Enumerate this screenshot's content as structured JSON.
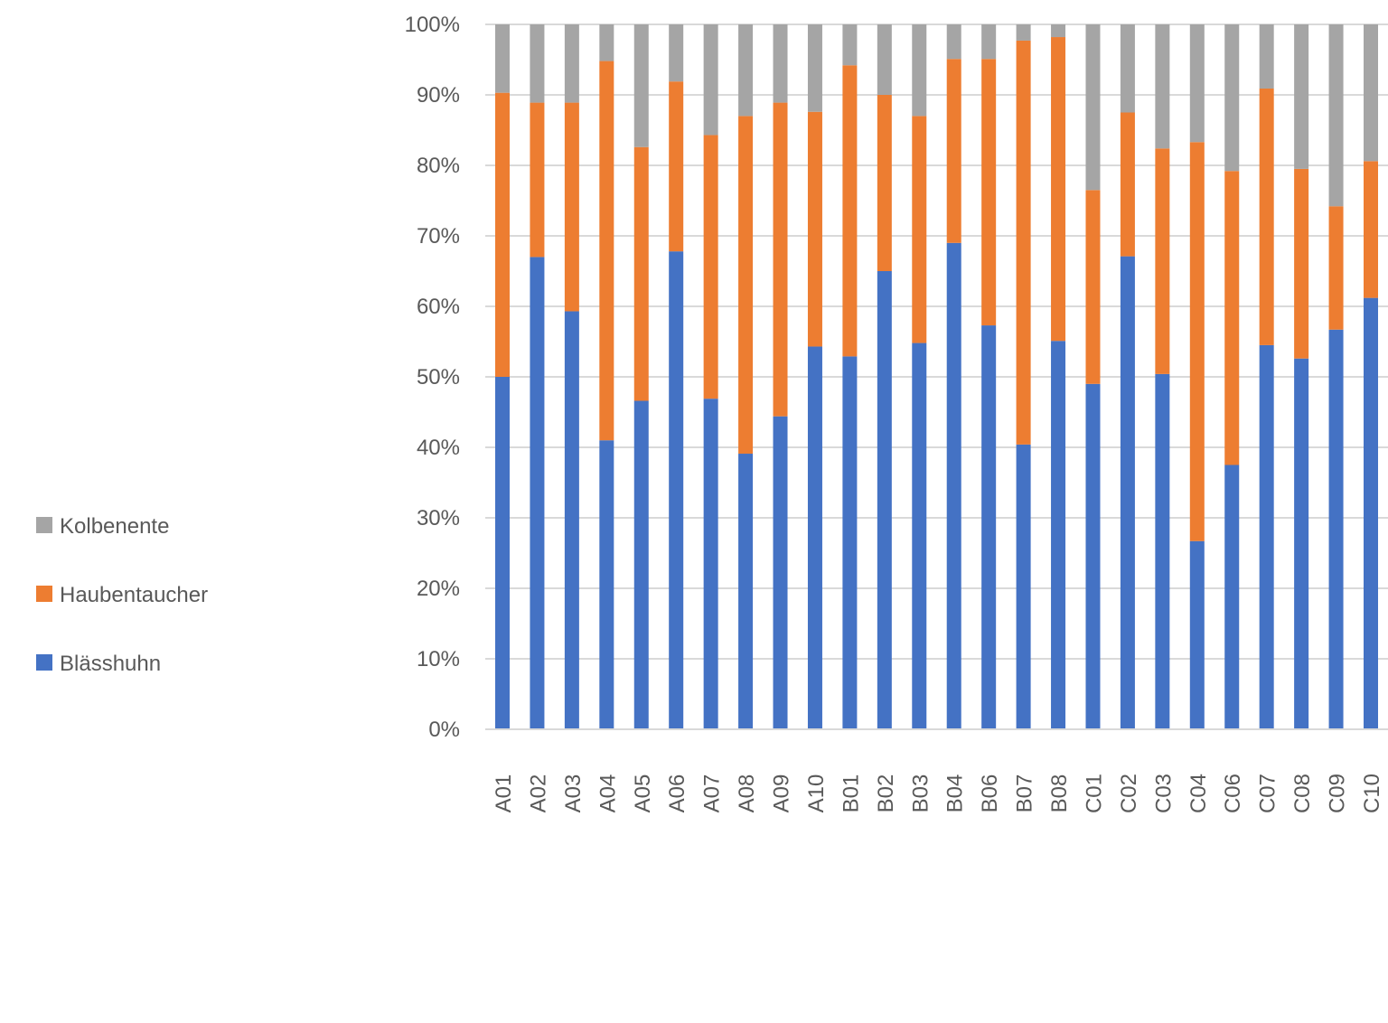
{
  "chart_data": {
    "type": "bar",
    "stacked": true,
    "percent_stacked": true,
    "title": "",
    "xlabel": "",
    "ylabel": "",
    "ylim": [
      0,
      100
    ],
    "y_ticks": [
      "0%",
      "10%",
      "20%",
      "30%",
      "40%",
      "50%",
      "60%",
      "70%",
      "80%",
      "90%",
      "100%"
    ],
    "grid": true,
    "legend_position": "left",
    "categories": [
      "A01",
      "A02",
      "A03",
      "A04",
      "A05",
      "A06",
      "A07",
      "A08",
      "A09",
      "A10",
      "B01",
      "B02",
      "B03",
      "B04",
      "B06",
      "B07",
      "B08",
      "C01",
      "C02",
      "C03",
      "C04",
      "C06",
      "C07",
      "C08",
      "C09",
      "C10"
    ],
    "series": [
      {
        "name": "Blässhuhn",
        "color": "#4472C4",
        "values": [
          50.0,
          67.0,
          59.3,
          41.0,
          46.6,
          67.8,
          46.9,
          39.1,
          44.4,
          54.3,
          52.9,
          65.0,
          54.8,
          69.0,
          57.3,
          40.4,
          55.1,
          49.0,
          67.1,
          50.4,
          26.7,
          37.5,
          54.5,
          52.6,
          56.7,
          61.2
        ]
      },
      {
        "name": "Haubentaucher",
        "color": "#ED7D31",
        "values": [
          40.3,
          21.9,
          29.6,
          53.8,
          36.0,
          24.1,
          37.4,
          47.9,
          44.5,
          33.3,
          41.3,
          25.0,
          32.2,
          26.1,
          37.8,
          57.3,
          43.1,
          27.5,
          20.4,
          32.0,
          56.6,
          41.7,
          36.4,
          26.9,
          17.5,
          19.4
        ]
      },
      {
        "name": "Kolbenente",
        "color": "#A5A5A5",
        "values": [
          9.7,
          11.1,
          11.1,
          5.2,
          17.4,
          8.1,
          15.7,
          13.0,
          11.1,
          12.4,
          5.8,
          10.0,
          13.0,
          4.9,
          4.9,
          2.3,
          1.8,
          23.5,
          12.5,
          17.6,
          16.7,
          20.8,
          9.1,
          20.5,
          25.8,
          19.4
        ]
      }
    ]
  }
}
